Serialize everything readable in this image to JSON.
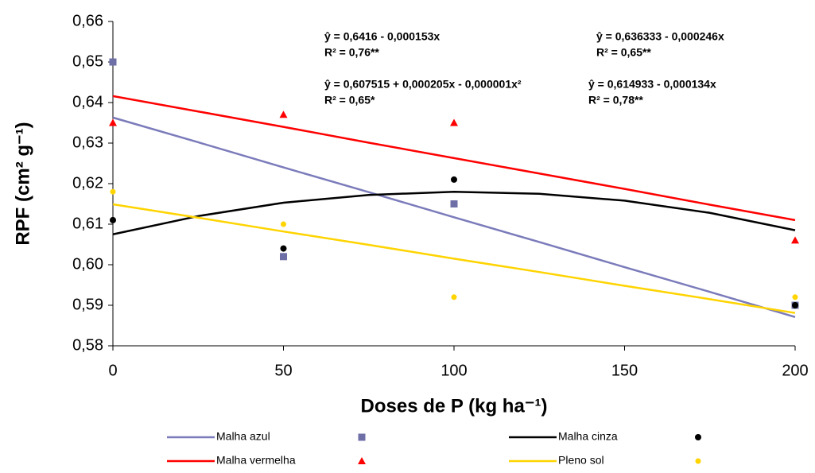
{
  "chart_data": {
    "type": "scatter",
    "xlabel": "Doses de P (kg ha⁻¹)",
    "ylabel": "RPF (cm² g⁻¹)",
    "xlim": [
      0,
      200
    ],
    "xticks": [
      0,
      50,
      100,
      150,
      200
    ],
    "ylim": [
      0.58,
      0.66
    ],
    "yticks": [
      {
        "value": 0.58,
        "label": "0,58"
      },
      {
        "value": 0.59,
        "label": "0,59"
      },
      {
        "value": 0.6,
        "label": "0,60"
      },
      {
        "value": 0.61,
        "label": "0,61"
      },
      {
        "value": 0.62,
        "label": "0,62"
      },
      {
        "value": 0.63,
        "label": "0,63"
      },
      {
        "value": 0.64,
        "label": "0,64"
      },
      {
        "value": 0.65,
        "label": "0,65"
      },
      {
        "value": 0.66,
        "label": "0,66"
      }
    ],
    "x": [
      0,
      50,
      100,
      200
    ],
    "fit_x": [
      0,
      25,
      50,
      75,
      100,
      125,
      150,
      175,
      200
    ],
    "series": [
      {
        "name": "Malha azul",
        "color": "#7b7bbb",
        "marker_color": "#6f6fa8",
        "marker": "square",
        "values": [
          0.65,
          0.602,
          0.615,
          0.59
        ],
        "fit_values": [
          0.6363,
          0.6302,
          0.624,
          0.6179,
          0.6117,
          0.6056,
          0.5994,
          0.5933,
          0.5871
        ]
      },
      {
        "name": "Malha cinza",
        "color": "#000000",
        "marker_color": "#000000",
        "marker": "circle",
        "values": [
          0.611,
          0.604,
          0.621,
          0.59
        ],
        "fit_values": [
          0.6075,
          0.612,
          0.6153,
          0.6172,
          0.618,
          0.6175,
          0.6158,
          0.6128,
          0.6085
        ]
      },
      {
        "name": "Malha vermelha",
        "color": "#ff0000",
        "marker_color": "#ff0000",
        "marker": "triangle",
        "values": [
          0.635,
          0.637,
          0.635,
          0.606
        ],
        "fit_values": [
          0.6416,
          0.6378,
          0.634,
          0.6301,
          0.6263,
          0.6225,
          0.6187,
          0.6148,
          0.611
        ]
      },
      {
        "name": "Pleno sol",
        "color": "#ffd400",
        "marker_color": "#ffd400",
        "marker": "dot",
        "values": [
          0.618,
          0.61,
          0.592,
          0.592
        ],
        "fit_values": [
          0.6149,
          0.6116,
          0.6082,
          0.6049,
          0.6015,
          0.5982,
          0.5948,
          0.5915,
          0.5881
        ]
      }
    ],
    "annotations": [
      {
        "color": "#ff0000",
        "lines": [
          "ŷ = 0,6416 - 0,000153x",
          "R² = 0,76**"
        ]
      },
      {
        "color": "#0000ff",
        "lines": [
          "ŷ =  0,636333 - 0,000246x",
          "R² = 0,65**"
        ]
      },
      {
        "color": "#000000",
        "lines": [
          "ŷ = 0,607515 + 0,000205x - 0,000001x²",
          "R² = 0,65*"
        ]
      },
      {
        "color": "#ffc800",
        "lines": [
          "ŷ =  0,614933 - 0,000134x",
          "R² = 0,78**"
        ]
      }
    ]
  }
}
